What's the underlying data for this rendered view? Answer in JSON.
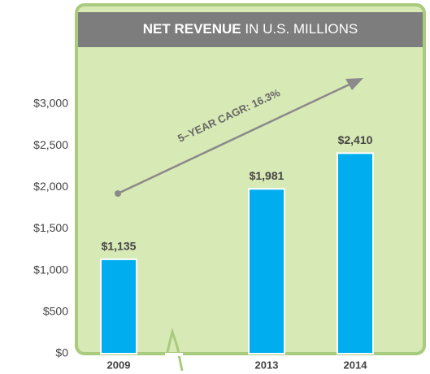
{
  "chart_data": {
    "type": "bar",
    "title": "NET REVENUE",
    "subtitle": "IN U.S. MILLIONS",
    "categories": [
      "2009",
      "2013",
      "2014"
    ],
    "values": [
      1135,
      1981,
      2410
    ],
    "value_labels": [
      "$1,135",
      "$1,981",
      "$2,410"
    ],
    "color": "#00aeef",
    "ylim": [
      0,
      3000
    ],
    "yticks": [
      {
        "value": 0,
        "label": "$0"
      },
      {
        "value": 500,
        "label": "$500"
      },
      {
        "value": 1000,
        "label": "$1,000"
      },
      {
        "value": 1500,
        "label": "$1,500"
      },
      {
        "value": 2000,
        "label": "$2,000"
      },
      {
        "value": 2500,
        "label": "$2,500"
      },
      {
        "value": 3000,
        "label": "$3,000"
      }
    ],
    "annotation": "5–YEAR CAGR: 16.3%"
  }
}
